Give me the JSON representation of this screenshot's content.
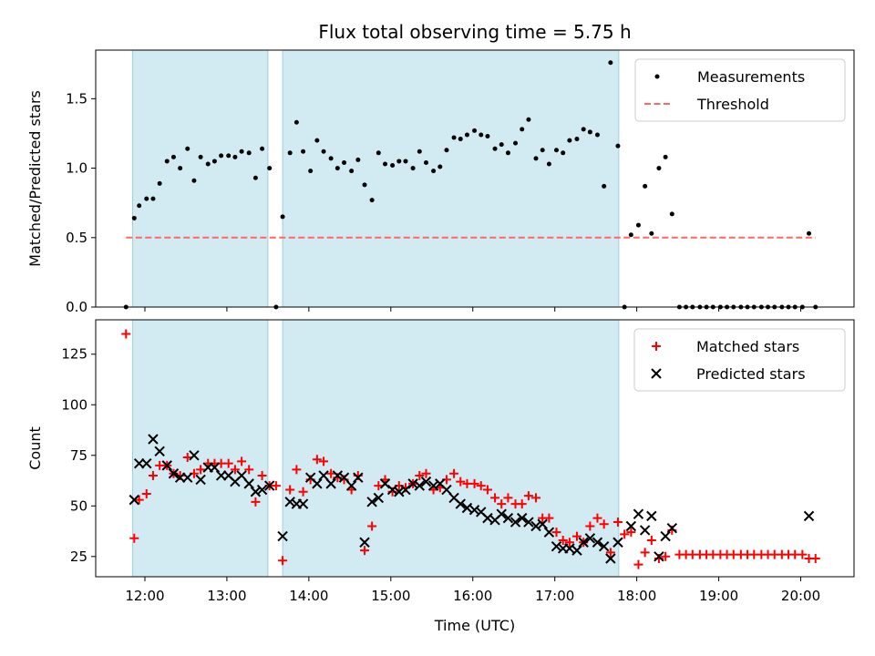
{
  "chart_data": [
    {
      "type": "scatter",
      "title": "Flux total observing time = 5.75 h",
      "xlabel": "",
      "ylabel": "Matched/Predicted stars",
      "ylim": [
        0,
        1.85
      ],
      "yticks": [
        "0.0",
        "0.5",
        "1.0",
        "1.5"
      ],
      "xlim_hours": [
        11.4,
        20.65
      ],
      "observing_windows_hours": [
        [
          11.85,
          13.5
        ],
        [
          13.68,
          17.78
        ]
      ],
      "series": [
        {
          "name": "Measurements",
          "color": "#000000",
          "marker": "dot",
          "x": [
            11.77,
            11.87,
            11.93,
            12.02,
            12.1,
            12.18,
            12.27,
            12.35,
            12.43,
            12.52,
            12.6,
            12.68,
            12.77,
            12.85,
            12.93,
            13.02,
            13.1,
            13.18,
            13.27,
            13.35,
            13.43,
            13.52,
            13.6,
            13.68,
            13.77,
            13.85,
            13.93,
            14.02,
            14.1,
            14.18,
            14.27,
            14.35,
            14.43,
            14.52,
            14.6,
            14.68,
            14.77,
            14.85,
            14.93,
            15.02,
            15.1,
            15.18,
            15.27,
            15.35,
            15.43,
            15.52,
            15.6,
            15.68,
            15.77,
            15.85,
            15.93,
            16.02,
            16.1,
            16.18,
            16.27,
            16.35,
            16.43,
            16.52,
            16.6,
            16.68,
            16.77,
            16.85,
            16.93,
            17.02,
            17.1,
            17.18,
            17.27,
            17.35,
            17.43,
            17.52,
            17.6,
            17.68,
            17.77,
            17.85,
            17.93,
            18.02,
            18.1,
            18.18,
            18.27,
            18.35,
            18.43,
            18.52,
            18.6,
            18.68,
            18.77,
            18.85,
            18.93,
            19.02,
            19.1,
            19.18,
            19.27,
            19.35,
            19.43,
            19.52,
            19.6,
            19.68,
            19.77,
            19.85,
            19.93,
            20.02,
            20.1,
            20.18
          ],
          "y": [
            0.0,
            0.64,
            0.73,
            0.78,
            0.78,
            0.89,
            1.05,
            1.08,
            1.0,
            1.14,
            0.91,
            1.08,
            1.03,
            1.05,
            1.09,
            1.09,
            1.08,
            1.12,
            1.11,
            0.93,
            1.14,
            1.0,
            0.0,
            0.65,
            1.11,
            1.33,
            1.12,
            0.98,
            1.2,
            1.12,
            1.07,
            1.0,
            1.04,
            0.98,
            1.06,
            0.88,
            0.77,
            1.11,
            1.03,
            1.02,
            1.05,
            1.05,
            1.0,
            1.12,
            1.04,
            0.98,
            1.01,
            1.13,
            1.22,
            1.21,
            1.24,
            1.27,
            1.24,
            1.23,
            1.14,
            1.17,
            1.11,
            1.18,
            1.28,
            1.35,
            1.07,
            1.13,
            1.03,
            1.13,
            1.11,
            1.2,
            1.21,
            1.28,
            1.26,
            1.24,
            0.87,
            1.76,
            1.16,
            0.0,
            0.52,
            0.59,
            0.87,
            0.53,
            1.0,
            1.08,
            0.67,
            0.0,
            0.0,
            0.0,
            0.0,
            0.0,
            0.0,
            0.0,
            0.0,
            0.0,
            0.0,
            0.0,
            0.0,
            0.0,
            0.0,
            0.0,
            0.0,
            0.0,
            0.0,
            0.0,
            0.53,
            0.0
          ]
        },
        {
          "name": "Threshold",
          "color": "#ff6666",
          "style": "dashed",
          "x": [
            11.77,
            20.18
          ],
          "y": [
            0.5,
            0.5
          ]
        }
      ],
      "legend": [
        "Measurements",
        "Threshold"
      ],
      "legend_position": "top-right"
    },
    {
      "type": "scatter",
      "title": "",
      "xlabel": "Time (UTC)",
      "ylabel": "Count",
      "ylim": [
        15,
        142
      ],
      "yticks": [
        "25",
        "50",
        "75",
        "100",
        "125"
      ],
      "xticks": [
        "12:00",
        "13:00",
        "14:00",
        "15:00",
        "16:00",
        "17:00",
        "18:00",
        "19:00",
        "20:00"
      ],
      "xlim_hours": [
        11.4,
        20.65
      ],
      "observing_windows_hours": [
        [
          11.85,
          13.5
        ],
        [
          13.68,
          17.78
        ]
      ],
      "series": [
        {
          "name": "Matched stars",
          "color": "#ff0000",
          "marker": "plus",
          "x": [
            11.77,
            11.87,
            11.93,
            12.02,
            12.1,
            12.18,
            12.27,
            12.35,
            12.43,
            12.52,
            12.6,
            12.68,
            12.77,
            12.85,
            12.93,
            13.02,
            13.1,
            13.18,
            13.27,
            13.35,
            13.43,
            13.52,
            13.6,
            13.68,
            13.77,
            13.85,
            13.93,
            14.02,
            14.1,
            14.18,
            14.27,
            14.35,
            14.43,
            14.52,
            14.6,
            14.68,
            14.77,
            14.85,
            14.93,
            15.02,
            15.1,
            15.18,
            15.27,
            15.35,
            15.43,
            15.52,
            15.6,
            15.68,
            15.77,
            15.85,
            15.93,
            16.02,
            16.1,
            16.18,
            16.27,
            16.35,
            16.43,
            16.52,
            16.6,
            16.68,
            16.77,
            16.85,
            16.93,
            17.02,
            17.1,
            17.18,
            17.27,
            17.35,
            17.43,
            17.52,
            17.6,
            17.68,
            17.77,
            17.85,
            17.93,
            18.02,
            18.1,
            18.18,
            18.27,
            18.35,
            18.43,
            18.52,
            18.6,
            18.68,
            18.77,
            18.85,
            18.93,
            19.02,
            19.1,
            19.18,
            19.27,
            19.35,
            19.43,
            19.52,
            19.6,
            19.68,
            19.77,
            19.85,
            19.93,
            20.02,
            20.1,
            20.18
          ],
          "y": [
            135,
            34,
            53,
            56,
            65,
            70,
            70,
            66,
            65,
            74,
            66,
            68,
            71,
            71,
            71,
            71,
            68,
            72,
            68,
            52,
            65,
            60,
            60,
            23,
            58,
            68,
            57,
            63,
            73,
            72,
            66,
            64,
            63,
            58,
            65,
            28,
            40,
            60,
            63,
            57,
            60,
            59,
            61,
            65,
            66,
            58,
            59,
            63,
            66,
            62,
            61,
            61,
            60,
            58,
            54,
            51,
            54,
            51,
            51,
            55,
            54,
            44,
            44,
            37,
            33,
            32,
            35,
            32,
            40,
            44,
            41,
            27,
            42,
            36,
            37,
            21,
            27,
            33,
            24,
            25,
            38,
            26,
            26,
            26,
            26,
            26,
            26,
            26,
            26,
            26,
            26,
            26,
            26,
            26,
            26,
            26,
            26,
            26,
            26,
            26,
            24,
            24
          ]
        },
        {
          "name": "Predicted stars",
          "color": "#000000",
          "marker": "x",
          "x": [
            11.87,
            11.93,
            12.02,
            12.1,
            12.18,
            12.27,
            12.35,
            12.43,
            12.52,
            12.6,
            12.68,
            12.77,
            12.85,
            12.93,
            13.02,
            13.1,
            13.18,
            13.27,
            13.35,
            13.43,
            13.52,
            13.68,
            13.77,
            13.85,
            13.93,
            14.02,
            14.1,
            14.18,
            14.27,
            14.35,
            14.43,
            14.52,
            14.6,
            14.68,
            14.77,
            14.85,
            14.93,
            15.02,
            15.1,
            15.18,
            15.27,
            15.35,
            15.43,
            15.52,
            15.6,
            15.68,
            15.77,
            15.85,
            15.93,
            16.02,
            16.1,
            16.18,
            16.27,
            16.35,
            16.43,
            16.52,
            16.6,
            16.68,
            16.77,
            16.85,
            16.93,
            17.02,
            17.1,
            17.18,
            17.27,
            17.35,
            17.43,
            17.52,
            17.6,
            17.68,
            17.77,
            17.93,
            18.02,
            18.1,
            18.18,
            18.27,
            18.35,
            18.43,
            20.1
          ],
          "y": [
            53,
            71,
            71,
            83,
            77,
            70,
            66,
            64,
            64,
            75,
            63,
            69,
            69,
            65,
            65,
            62,
            65,
            61,
            57,
            58,
            60,
            35,
            52,
            51,
            51,
            64,
            61,
            65,
            61,
            65,
            64,
            60,
            64,
            32,
            52,
            54,
            61,
            58,
            57,
            58,
            61,
            60,
            62,
            60,
            61,
            58,
            54,
            51,
            49,
            48,
            47,
            44,
            43,
            46,
            44,
            42,
            44,
            42,
            40,
            41,
            37,
            30,
            29,
            29,
            28,
            32,
            34,
            32,
            30,
            24,
            32,
            40,
            46,
            38,
            45,
            25,
            35,
            39,
            45
          ]
        }
      ],
      "legend": [
        "Matched stars",
        "Predicted stars"
      ],
      "legend_position": "top-right"
    }
  ]
}
